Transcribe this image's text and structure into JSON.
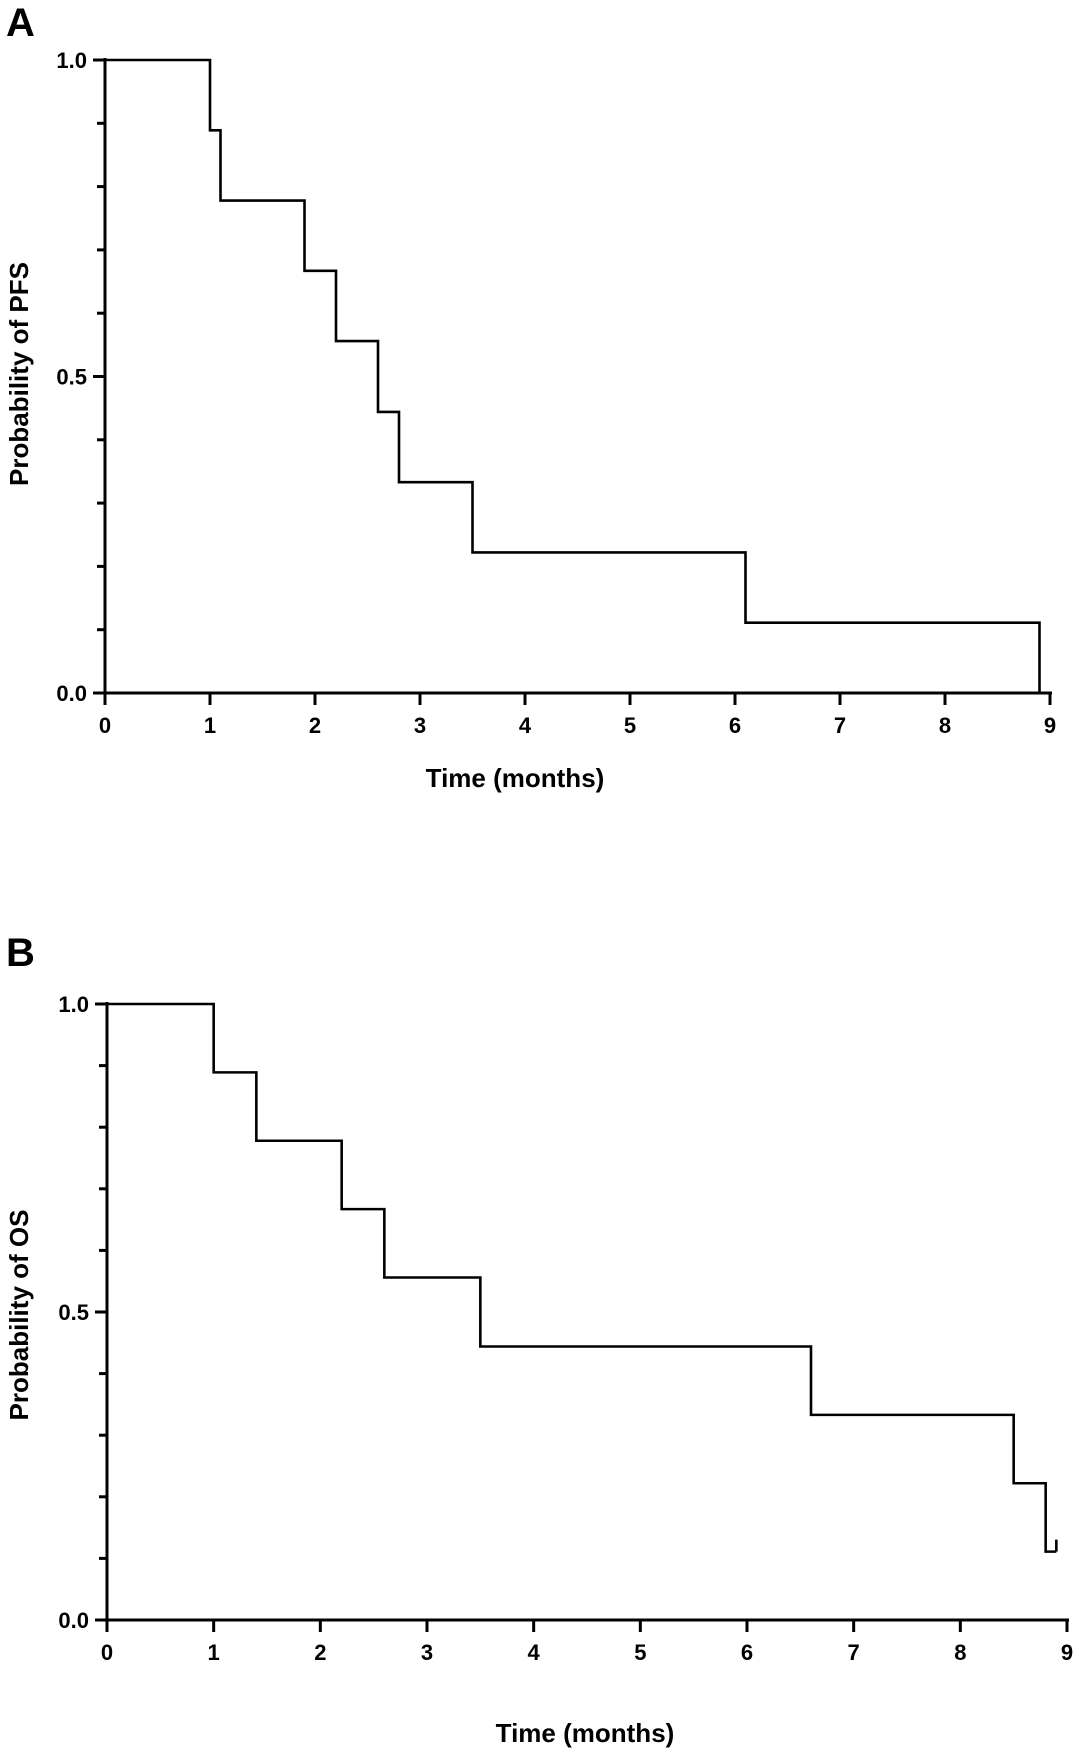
{
  "chart_data": [
    {
      "type": "line",
      "panel": "A",
      "title": "",
      "xlabel": "Time (months)",
      "ylabel": "Probability of PFS",
      "xlim": [
        0,
        9
      ],
      "ylim": [
        0,
        1
      ],
      "xticks": [
        "0",
        "1",
        "2",
        "3",
        "4",
        "5",
        "6",
        "7",
        "8",
        "9"
      ],
      "yticks": [
        "0.0",
        "0.5",
        "1.0"
      ],
      "grid": false,
      "step": true,
      "x": [
        0,
        1.0,
        1.1,
        1.9,
        2.2,
        2.6,
        2.8,
        3.5,
        6.1,
        8.9
      ],
      "y": [
        1.0,
        0.889,
        0.778,
        0.667,
        0.556,
        0.444,
        0.333,
        0.222,
        0.111,
        0.0
      ]
    },
    {
      "type": "line",
      "panel": "B",
      "title": "",
      "xlabel": "Time (months)",
      "ylabel": "Probability of OS",
      "xlim": [
        0,
        9
      ],
      "ylim": [
        0,
        1
      ],
      "xticks": [
        "0",
        "1",
        "2",
        "3",
        "4",
        "5",
        "6",
        "7",
        "8",
        "9"
      ],
      "yticks": [
        "0.0",
        "0.5",
        "1.0"
      ],
      "grid": false,
      "step": true,
      "x": [
        0,
        1.0,
        1.4,
        2.2,
        2.6,
        3.5,
        6.6,
        8.5,
        8.8,
        8.9
      ],
      "y": [
        1.0,
        0.889,
        0.778,
        0.667,
        0.556,
        0.444,
        0.333,
        0.222,
        0.111,
        0.111
      ],
      "censored_end": true
    }
  ]
}
